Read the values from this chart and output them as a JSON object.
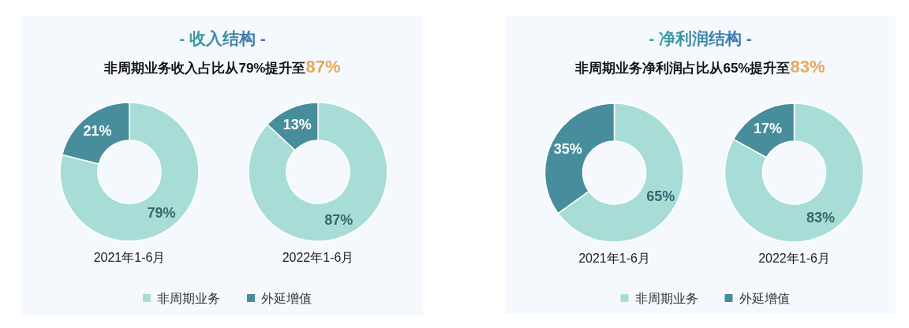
{
  "chart_data": [
    {
      "type": "donut",
      "title": "- 收入结构 -",
      "subtitle": "非周期业务收入占比从79%提升至87%",
      "categories": [
        "非周期业务",
        "外延增值"
      ],
      "colors": [
        "#a8ddd7",
        "#478d9c"
      ],
      "series": [
        {
          "name": "2021年1-6月",
          "values": [
            79,
            21
          ],
          "value_labels": [
            "79%",
            "21%"
          ]
        },
        {
          "name": "2022年1-6月",
          "values": [
            87,
            13
          ],
          "value_labels": [
            "87%",
            "13%"
          ]
        }
      ],
      "legend": "bottom"
    },
    {
      "type": "donut",
      "title": "- 净利润结构 -",
      "subtitle": "非周期业务净利润占比从65%提升至83%",
      "categories": [
        "非周期业务",
        "外延增值"
      ],
      "colors": [
        "#a8ddd7",
        "#478d9c"
      ],
      "series": [
        {
          "name": "2021年1-6月",
          "values": [
            65,
            35
          ],
          "value_labels": [
            "65%",
            "35%"
          ]
        },
        {
          "name": "2022年1-6月",
          "values": [
            83,
            17
          ],
          "value_labels": [
            "83%",
            "17%"
          ]
        }
      ],
      "legend": "bottom"
    }
  ]
}
